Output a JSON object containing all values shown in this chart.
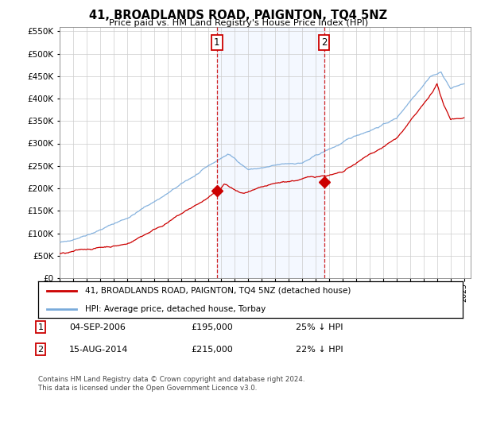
{
  "title": "41, BROADLANDS ROAD, PAIGNTON, TQ4 5NZ",
  "subtitle": "Price paid vs. HM Land Registry's House Price Index (HPI)",
  "legend_property": "41, BROADLANDS ROAD, PAIGNTON, TQ4 5NZ (detached house)",
  "legend_hpi": "HPI: Average price, detached house, Torbay",
  "property_color": "#cc0000",
  "hpi_color": "#7aabdb",
  "annotation1_date": "04-SEP-2006",
  "annotation1_price": "£195,000",
  "annotation1_hpi": "25% ↓ HPI",
  "annotation2_date": "15-AUG-2014",
  "annotation2_price": "£215,000",
  "annotation2_hpi": "22% ↓ HPI",
  "footer": "Contains HM Land Registry data © Crown copyright and database right 2024.\nThis data is licensed under the Open Government Licence v3.0.",
  "ylim_min": 0,
  "ylim_max": 560000,
  "yticks": [
    0,
    50000,
    100000,
    150000,
    200000,
    250000,
    300000,
    350000,
    400000,
    450000,
    500000,
    550000
  ],
  "vline1_year": 2006.67,
  "vline2_year": 2014.62,
  "marker1_price": 195000,
  "marker2_price": 215000
}
